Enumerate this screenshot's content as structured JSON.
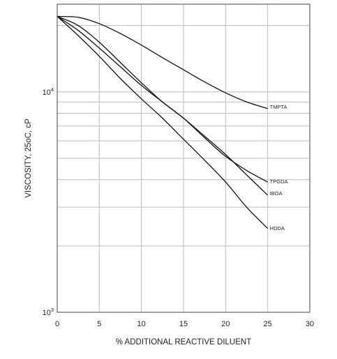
{
  "chart_data": {
    "type": "line",
    "xlabel": "% ADDITIONAL REACTIVE DILUENT",
    "ylabel": "VISCOSITY, 25oC, cP",
    "xlim": [
      0,
      30
    ],
    "ylim": [
      1000,
      25000
    ],
    "yscale": "log",
    "grid": true,
    "x_ticks": [
      0,
      5,
      10,
      15,
      20,
      25,
      30
    ],
    "x_tick_labels": [
      "0",
      "5",
      "10",
      "15",
      "20",
      "25",
      "30"
    ],
    "y_ticks": [
      1000,
      10000
    ],
    "y_tick_labels": [
      {
        "base": "10",
        "exp": "3"
      },
      {
        "base": "10",
        "exp": "4"
      }
    ],
    "y_minor_ticks": [
      2000,
      3000,
      4000,
      5000,
      6000,
      7000,
      8000,
      9000,
      20000
    ],
    "series": [
      {
        "name": "TMPTA",
        "x": [
          0,
          2.5,
          5,
          7.5,
          10,
          12.5,
          15,
          17.5,
          20,
          22.5,
          25
        ],
        "values": [
          22000,
          21800,
          20400,
          18400,
          16300,
          14300,
          12600,
          11100,
          9900,
          9000,
          8400
        ]
      },
      {
        "name": "TPGDA",
        "x": [
          0,
          2.5,
          5,
          7.5,
          10,
          12.5,
          15,
          17.5,
          20,
          22.5,
          25
        ],
        "values": [
          22000,
          20000,
          16800,
          13600,
          11000,
          9000,
          7600,
          6200,
          5100,
          4400,
          3900
        ]
      },
      {
        "name": "IBOA",
        "x": [
          0,
          2.5,
          5,
          7.5,
          10,
          12.5,
          15,
          17.5,
          20,
          22.5,
          25
        ],
        "values": [
          22000,
          19000,
          15800,
          13000,
          10700,
          9000,
          7600,
          6300,
          5200,
          4200,
          3400
        ]
      },
      {
        "name": "HDDA",
        "x": [
          0,
          2.5,
          5,
          7.5,
          10,
          12.5,
          15,
          17.5,
          20,
          22.5,
          25
        ],
        "values": [
          22000,
          18000,
          14500,
          11500,
          9300,
          7600,
          6100,
          4900,
          3900,
          3000,
          2400
        ]
      }
    ]
  }
}
